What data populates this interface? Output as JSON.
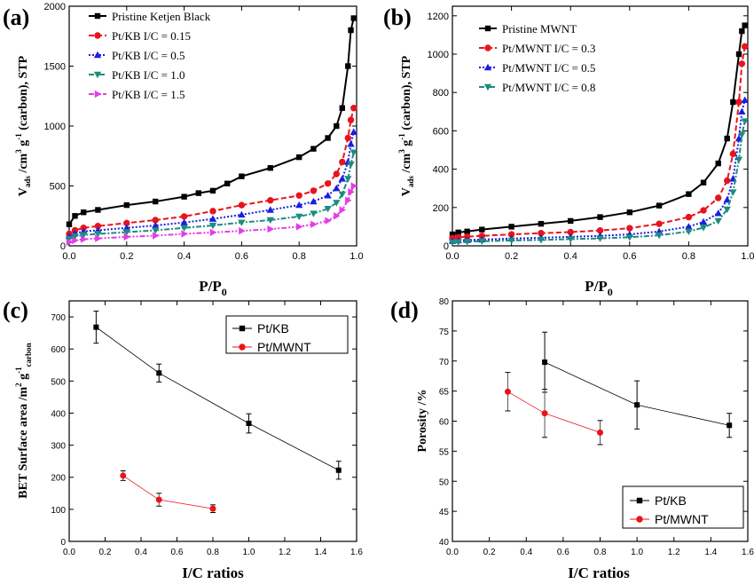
{
  "chart_data": [
    {
      "panel": "(a)",
      "type": "scatter",
      "xlabel": "P/P0",
      "ylabel": "V_ads /cm^3 g^-1 (carbon), STP",
      "xlim": [
        0,
        1.0
      ],
      "ylim": [
        0,
        2000
      ],
      "xticks": [
        0.0,
        0.2,
        0.4,
        0.6,
        0.8,
        1.0
      ],
      "yticks": [
        0,
        500,
        1000,
        1500,
        2000
      ],
      "legend_position": "top-left",
      "series": [
        {
          "name": "Pristine Ketjen Black",
          "color": "#000000",
          "marker": "square",
          "dash": "solid",
          "x": [
            0.0,
            0.02,
            0.05,
            0.1,
            0.2,
            0.3,
            0.4,
            0.45,
            0.5,
            0.55,
            0.6,
            0.7,
            0.8,
            0.85,
            0.9,
            0.93,
            0.95,
            0.97,
            0.98,
            0.99
          ],
          "y": [
            180,
            250,
            280,
            300,
            340,
            370,
            410,
            440,
            460,
            520,
            580,
            650,
            740,
            810,
            900,
            1000,
            1150,
            1500,
            1800,
            1900
          ]
        },
        {
          "name": "Pt/KB I/C = 0.15",
          "color": "#e8141c",
          "marker": "circle",
          "dash": "dashed",
          "x": [
            0.0,
            0.02,
            0.05,
            0.1,
            0.2,
            0.3,
            0.4,
            0.5,
            0.6,
            0.7,
            0.8,
            0.85,
            0.9,
            0.93,
            0.95,
            0.97,
            0.98,
            0.99
          ],
          "y": [
            100,
            130,
            150,
            165,
            190,
            215,
            245,
            290,
            340,
            380,
            420,
            460,
            520,
            600,
            700,
            900,
            1050,
            1150
          ]
        },
        {
          "name": "Pt/KB I/C = 0.5",
          "color": "#1a1ee0",
          "marker": "triangle-up",
          "dash": "dotted",
          "x": [
            0.0,
            0.02,
            0.05,
            0.1,
            0.2,
            0.3,
            0.4,
            0.5,
            0.6,
            0.7,
            0.8,
            0.85,
            0.9,
            0.93,
            0.95,
            0.97,
            0.98,
            0.99
          ],
          "y": [
            80,
            105,
            120,
            130,
            150,
            170,
            195,
            225,
            260,
            300,
            340,
            370,
            420,
            480,
            560,
            700,
            850,
            950
          ]
        },
        {
          "name": "Pt/KB I/C = 1.0",
          "color": "#1e8c80",
          "marker": "triangle-down",
          "dash": "dash-dot",
          "x": [
            0.0,
            0.02,
            0.05,
            0.1,
            0.2,
            0.3,
            0.4,
            0.5,
            0.6,
            0.7,
            0.8,
            0.85,
            0.9,
            0.93,
            0.95,
            0.97,
            0.98,
            0.99
          ],
          "y": [
            60,
            80,
            90,
            100,
            115,
            130,
            150,
            170,
            195,
            215,
            245,
            270,
            310,
            360,
            430,
            560,
            680,
            780
          ]
        },
        {
          "name": "Pt/KB I/C = 1.5",
          "color": "#e43ce8",
          "marker": "triangle-right",
          "dash": "dash-dot-dot",
          "x": [
            0.0,
            0.02,
            0.05,
            0.1,
            0.2,
            0.3,
            0.4,
            0.5,
            0.6,
            0.7,
            0.8,
            0.85,
            0.9,
            0.93,
            0.95,
            0.97,
            0.98,
            0.99
          ],
          "y": [
            30,
            45,
            55,
            62,
            75,
            85,
            100,
            112,
            125,
            140,
            160,
            180,
            210,
            250,
            300,
            380,
            450,
            500
          ]
        }
      ]
    },
    {
      "panel": "(b)",
      "type": "scatter",
      "xlabel": "P/P0",
      "ylabel": "V_ads /cm^3 g^-1 (carbon), STP",
      "xlim": [
        0,
        1.0
      ],
      "ylim": [
        0,
        1250
      ],
      "xticks": [
        0.0,
        0.2,
        0.4,
        0.6,
        0.8,
        1.0
      ],
      "yticks": [
        0,
        200,
        400,
        600,
        800,
        1000,
        1200
      ],
      "legend_position": "top-left",
      "series": [
        {
          "name": "Pristine MWNT",
          "color": "#000000",
          "marker": "square",
          "dash": "solid",
          "x": [
            0.0,
            0.02,
            0.05,
            0.1,
            0.2,
            0.3,
            0.4,
            0.5,
            0.6,
            0.7,
            0.8,
            0.85,
            0.9,
            0.93,
            0.95,
            0.97,
            0.98,
            0.99
          ],
          "y": [
            60,
            70,
            75,
            85,
            100,
            115,
            130,
            150,
            175,
            210,
            270,
            330,
            430,
            560,
            750,
            1000,
            1120,
            1150
          ]
        },
        {
          "name": "Pt/MWNT I/C = 0.3",
          "color": "#e8141c",
          "marker": "circle",
          "dash": "dashed",
          "x": [
            0.0,
            0.02,
            0.05,
            0.1,
            0.2,
            0.3,
            0.4,
            0.5,
            0.6,
            0.7,
            0.8,
            0.85,
            0.9,
            0.93,
            0.95,
            0.97,
            0.98,
            0.99
          ],
          "y": [
            40,
            45,
            48,
            52,
            60,
            66,
            72,
            80,
            92,
            115,
            150,
            185,
            250,
            340,
            480,
            750,
            950,
            1040
          ]
        },
        {
          "name": "Pt/MWNT I/C = 0.5",
          "color": "#1a1ee0",
          "marker": "triangle-up",
          "dash": "dotted",
          "x": [
            0.0,
            0.02,
            0.05,
            0.1,
            0.2,
            0.3,
            0.4,
            0.5,
            0.6,
            0.7,
            0.8,
            0.85,
            0.9,
            0.93,
            0.95,
            0.97,
            0.98,
            0.99
          ],
          "y": [
            25,
            28,
            30,
            33,
            38,
            42,
            47,
            52,
            60,
            75,
            100,
            125,
            170,
            240,
            350,
            560,
            700,
            760
          ]
        },
        {
          "name": "Pt/MWNT I/C = 0.8",
          "color": "#1e8c80",
          "marker": "triangle-down",
          "dash": "dash-dot",
          "x": [
            0.0,
            0.02,
            0.05,
            0.1,
            0.2,
            0.3,
            0.4,
            0.5,
            0.6,
            0.7,
            0.8,
            0.85,
            0.9,
            0.93,
            0.95,
            0.97,
            0.98,
            0.99
          ],
          "y": [
            18,
            20,
            22,
            24,
            28,
            31,
            35,
            39,
            45,
            55,
            75,
            95,
            130,
            190,
            280,
            450,
            580,
            650
          ]
        }
      ]
    },
    {
      "panel": "(c)",
      "type": "line",
      "xlabel": "I/C ratios",
      "ylabel": "BET Surface area /m^2 g^-1 carbon",
      "xlim": [
        0,
        1.6
      ],
      "ylim": [
        0,
        750
      ],
      "xticks": [
        0.0,
        0.2,
        0.4,
        0.6,
        0.8,
        1.0,
        1.2,
        1.4,
        1.6
      ],
      "yticks": [
        0,
        100,
        200,
        300,
        400,
        500,
        600,
        700
      ],
      "legend_position": "top-right",
      "series": [
        {
          "name": "Pt/KB",
          "color": "#000000",
          "marker": "square",
          "x": [
            0.15,
            0.5,
            1.0,
            1.5
          ],
          "y": [
            668,
            525,
            368,
            222
          ],
          "err": [
            50,
            28,
            30,
            28
          ]
        },
        {
          "name": "Pt/MWNT",
          "color": "#e8141c",
          "marker": "circle",
          "x": [
            0.3,
            0.5,
            0.8
          ],
          "y": [
            205,
            130,
            102
          ],
          "err": [
            15,
            20,
            12
          ]
        }
      ]
    },
    {
      "panel": "(d)",
      "type": "line",
      "xlabel": "I/C ratios",
      "ylabel": "Porosity /%",
      "xlim": [
        0,
        1.6
      ],
      "ylim": [
        40,
        80
      ],
      "xticks": [
        0.0,
        0.2,
        0.4,
        0.6,
        0.8,
        1.0,
        1.2,
        1.4,
        1.6
      ],
      "yticks": [
        40,
        45,
        50,
        55,
        60,
        65,
        70,
        75,
        80
      ],
      "legend_position": "bottom-right",
      "series": [
        {
          "name": "Pt/KB",
          "color": "#000000",
          "marker": "square",
          "x": [
            0.5,
            1.0,
            1.5
          ],
          "y": [
            69.8,
            62.7,
            59.3
          ],
          "err": [
            5.0,
            4.0,
            2.0
          ]
        },
        {
          "name": "Pt/MWNT",
          "color": "#e8141c",
          "marker": "circle",
          "x": [
            0.3,
            0.5,
            0.8
          ],
          "y": [
            64.9,
            61.3,
            58.1
          ],
          "err": [
            3.2,
            4.0,
            2.0
          ]
        }
      ]
    }
  ]
}
